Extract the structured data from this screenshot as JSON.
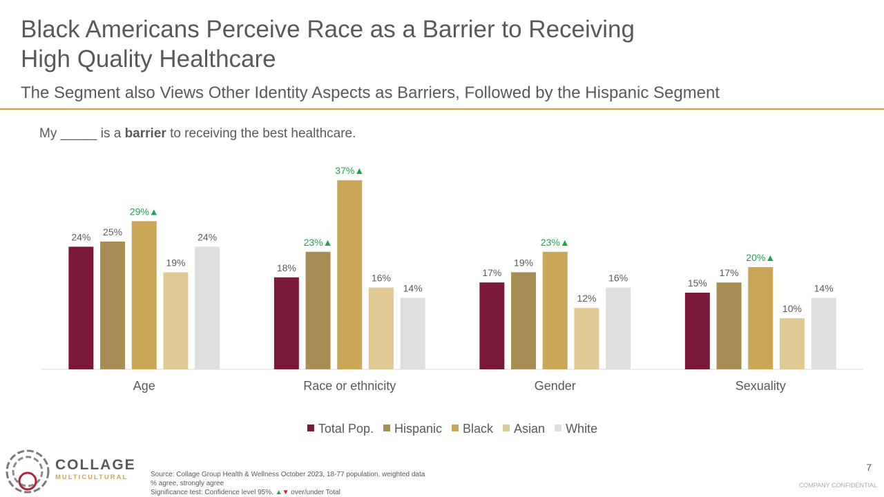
{
  "chart_data": {
    "type": "bar",
    "title": [
      "Black Americans Perceive Race as a Barrier to Receiving",
      "High Quality Healthcare"
    ],
    "subtitle": "The Segment also Views Other Identity Aspects as Barriers, Followed by the Hispanic Segment",
    "question": {
      "before": "My _____  is a",
      "bold": "barrier",
      "after": "to receiving the best healthcare."
    },
    "categories": [
      "Age",
      "Race or ethnicity",
      "Gender",
      "Sexuality"
    ],
    "series": [
      {
        "name": "Total Pop.",
        "color": "#7b1a38",
        "values": [
          24,
          18,
          17,
          15
        ],
        "value_labels": [
          "24%",
          "18%",
          "17%",
          "15%"
        ],
        "significant": [
          false,
          false,
          false,
          false
        ]
      },
      {
        "name": "Hispanic",
        "color": "#a88e55",
        "values": [
          25,
          23,
          19,
          17
        ],
        "value_labels": [
          "25%",
          "23%▲",
          "19%",
          "17%"
        ],
        "significant": [
          false,
          true,
          false,
          false
        ]
      },
      {
        "name": "Black",
        "color": "#c9a756",
        "values": [
          29,
          37,
          23,
          20
        ],
        "value_labels": [
          "29%▲",
          "37%▲",
          "23%▲",
          "20%▲"
        ],
        "significant": [
          true,
          true,
          true,
          true
        ]
      },
      {
        "name": "Asian",
        "color": "#e0c994",
        "values": [
          19,
          16,
          12,
          10
        ],
        "value_labels": [
          "19%",
          "16%",
          "12%",
          "10%"
        ],
        "significant": [
          false,
          false,
          false,
          false
        ]
      },
      {
        "name": "White",
        "color": "#dedede",
        "values": [
          24,
          14,
          16,
          14
        ],
        "value_labels": [
          "24%",
          "14%",
          "16%",
          "14%"
        ],
        "significant": [
          false,
          false,
          false,
          false
        ]
      }
    ],
    "significant_color": "#1fa34a",
    "legend": "bottom"
  },
  "footer": {
    "source": [
      "Source: Collage Group Health & Wellness October 2023, 18-77 population, weighted data",
      "% agree, strongly agree"
    ],
    "significance": {
      "text": "Significance test: Confidence level 95%.",
      "up": "▲",
      "down": "▼",
      "after": "over/under Total"
    },
    "logo": {
      "name": "COLLAGE",
      "tagline": "MULTICULTURAL"
    },
    "page_number": "7",
    "confidential": "COMPANY CONFIDENTIAL"
  }
}
